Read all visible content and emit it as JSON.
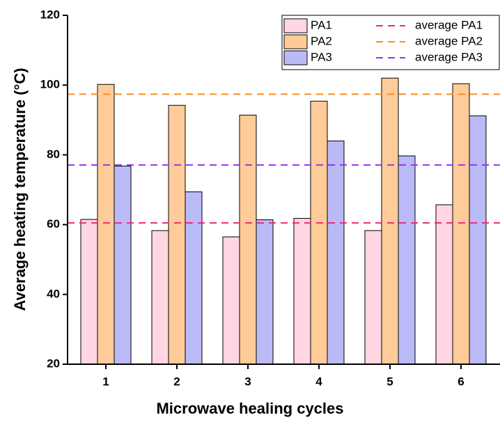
{
  "chart_data": {
    "type": "bar",
    "x_label": "Microwave healing cycles",
    "y_label": "Average heating temperature (°C)",
    "categories": [
      "1",
      "2",
      "3",
      "4",
      "5",
      "6"
    ],
    "series": [
      {
        "name": "PA1",
        "color": "#ffd6e1",
        "values": [
          61.5,
          58.3,
          56.5,
          61.8,
          58.3,
          65.7
        ]
      },
      {
        "name": "PA2",
        "color": "#ffcc99",
        "values": [
          100.2,
          94.2,
          91.4,
          95.4,
          102,
          100.4
        ]
      },
      {
        "name": "PA3",
        "color": "#babaf7",
        "values": [
          76.8,
          69.4,
          61.4,
          84,
          79.7,
          91.2
        ]
      }
    ],
    "reference_lines": [
      {
        "name": "average PA1",
        "color": "#f0287a",
        "value": 60.5
      },
      {
        "name": "average PA2",
        "color": "#ff8c1a",
        "value": 97.4
      },
      {
        "name": "average PA3",
        "color": "#9933ee",
        "value": 77.1
      }
    ],
    "ylim": [
      20,
      120
    ],
    "yticks": [
      20,
      40,
      60,
      80,
      100,
      120
    ],
    "grid": false
  }
}
